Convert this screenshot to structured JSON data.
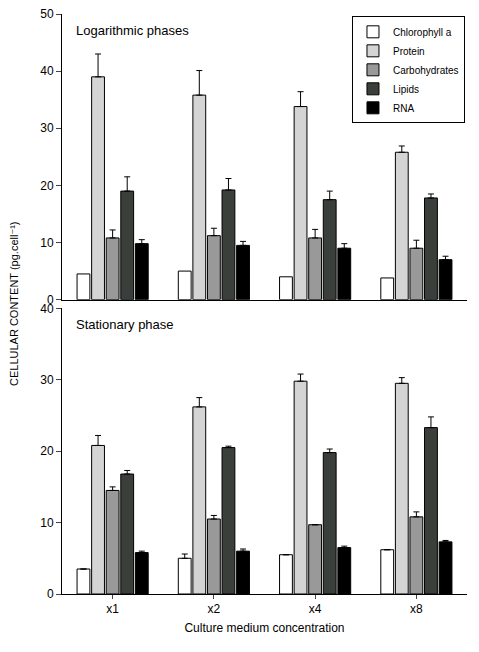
{
  "chart_data": [
    {
      "type": "bar",
      "title": "Logarithmic phases",
      "y_label": "CELLULAR CONTENT (pg.cell⁻¹)",
      "categories": [
        "x1",
        "x2",
        "x4",
        "x8"
      ],
      "series": [
        {
          "name": "Chlorophyll a",
          "color": "#ffffff",
          "values": [
            4.5,
            5,
            4,
            3.8
          ]
        },
        {
          "name": "Protein",
          "color": "#d4d4d4",
          "values": [
            39,
            35.8,
            33.8,
            25.8
          ],
          "errors": [
            4,
            4.3,
            2.6,
            1.1
          ]
        },
        {
          "name": "Carbohydrates",
          "color": "#999999",
          "values": [
            10.8,
            11.2,
            10.8,
            9
          ],
          "errors": [
            1.4,
            1.3,
            1.5,
            1.4
          ]
        },
        {
          "name": "Lipids",
          "color": "#3b3f3b",
          "values": [
            19,
            19.2,
            17.5,
            17.8
          ],
          "errors": [
            2.5,
            2,
            1.5,
            0.7
          ]
        },
        {
          "name": "RNA",
          "color": "#000000",
          "values": [
            9.8,
            9.5,
            9,
            7
          ],
          "errors": [
            0.7,
            0.7,
            0.8,
            0.6
          ]
        }
      ],
      "ylim": [
        0,
        50
      ],
      "yticks": [
        0,
        10,
        20,
        30,
        40,
        50
      ],
      "legend": "top right",
      "tick_labels": "y"
    },
    {
      "type": "bar",
      "title": "Stationary phase",
      "x_label": "Culture medium concentration",
      "categories": [
        "x1",
        "x2",
        "x4",
        "x8"
      ],
      "series": [
        {
          "name": "Chlorophyll a",
          "color": "#ffffff",
          "values": [
            3.5,
            5,
            5.5,
            6.2
          ],
          "errors": [
            0,
            0.6,
            0,
            0
          ]
        },
        {
          "name": "Protein",
          "color": "#d4d4d4",
          "values": [
            20.8,
            26.2,
            29.8,
            29.5
          ],
          "errors": [
            1.4,
            1.3,
            1,
            0.8
          ]
        },
        {
          "name": "Carbohydrates",
          "color": "#999999",
          "values": [
            14.5,
            10.5,
            9.7,
            10.8
          ],
          "errors": [
            0.5,
            0.5,
            0,
            0.7
          ]
        },
        {
          "name": "Lipids",
          "color": "#3b3f3b",
          "values": [
            16.8,
            20.5,
            19.8,
            23.3
          ],
          "errors": [
            0.5,
            0.2,
            0.5,
            1.5
          ]
        },
        {
          "name": "RNA",
          "color": "#000000",
          "values": [
            5.8,
            6,
            6.5,
            7.3
          ],
          "errors": [
            0.2,
            0.3,
            0.2,
            0.2
          ]
        }
      ],
      "ylim": [
        0,
        40
      ],
      "yticks": [
        0,
        10,
        20,
        30,
        40
      ]
    }
  ]
}
